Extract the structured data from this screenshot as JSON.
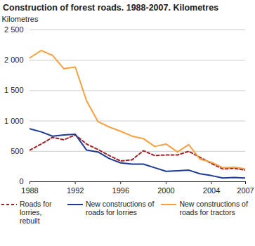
{
  "chart_data": {
    "type": "line",
    "title": "Construction of forest roads. 1988-2007. Kilometres",
    "y_label": "Kilometres",
    "x": [
      1988,
      1989,
      1990,
      1991,
      1992,
      1993,
      1994,
      1995,
      1996,
      1997,
      1998,
      1999,
      2000,
      2001,
      2002,
      2003,
      2004,
      2005,
      2006,
      2007
    ],
    "series": [
      {
        "name": "Roads for lorries, rebuilt",
        "color": "#9b2226",
        "line_style": "dashed",
        "values": [
          520,
          620,
          730,
          690,
          770,
          620,
          530,
          430,
          340,
          360,
          510,
          430,
          440,
          440,
          500,
          400,
          300,
          210,
          220,
          190
        ]
      },
      {
        "name": "New constructions of roads for lorries",
        "color": "#1f3a93",
        "line_style": "solid",
        "values": [
          870,
          820,
          750,
          770,
          780,
          520,
          490,
          380,
          310,
          290,
          290,
          230,
          170,
          180,
          190,
          130,
          100,
          60,
          70,
          60
        ]
      },
      {
        "name": "New constructions of roads for tractors",
        "color": "#f5a142",
        "line_style": "solid",
        "values": [
          2040,
          2160,
          2080,
          1860,
          1890,
          1330,
          990,
          900,
          830,
          750,
          710,
          580,
          620,
          490,
          610,
          370,
          320,
          230,
          240,
          210
        ]
      }
    ],
    "xlim": [
      1988,
      2007
    ],
    "xticks": [
      1988,
      1992,
      1996,
      2000,
      2004,
      2007
    ],
    "ylim": [
      0,
      2500
    ],
    "yticks": [
      0,
      500,
      {
        "value": 1000,
        "label": "1 000"
      },
      {
        "value": 1500,
        "label": "1 500"
      },
      {
        "value": 2000,
        "label": "2 000"
      },
      {
        "value": 2500,
        "label": "2 500"
      }
    ],
    "grid": true
  }
}
